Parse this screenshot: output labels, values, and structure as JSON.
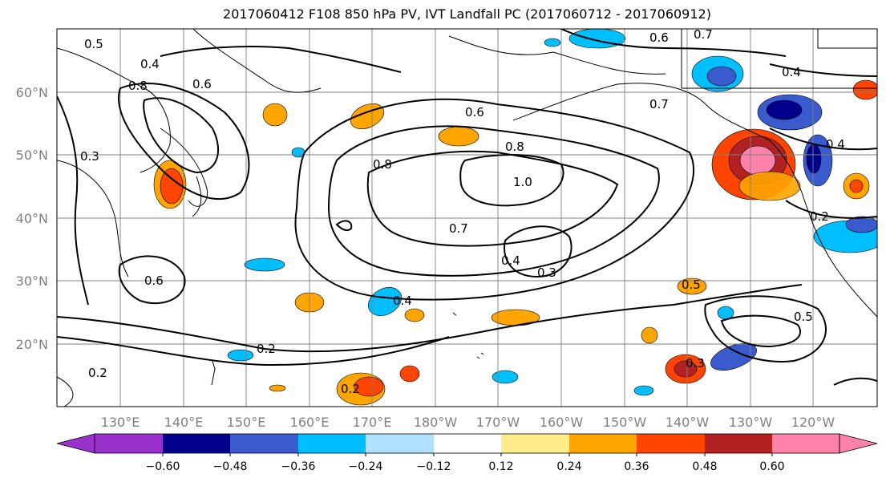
{
  "title": "2017060412 F108 850 hPa PV, IVT Landfall PC (2017060712 - 2017060912)",
  "lat_labels": [
    "60°N",
    "50°N",
    "40°N",
    "30°N",
    "20°N"
  ],
  "lon_labels": [
    "130°E",
    "140°E",
    "150°E",
    "160°E",
    "170°E",
    "180°W",
    "170°W",
    "160°W",
    "150°W",
    "140°W",
    "130°W",
    "120°W"
  ],
  "colorbar": {
    "ticks": [
      "−0.60",
      "−0.48",
      "−0.36",
      "−0.24",
      "−0.12",
      "0.12",
      "0.24",
      "0.36",
      "0.48",
      "0.60"
    ],
    "colors": [
      "#9932cc",
      "#00008b",
      "#3a5bcd",
      "#00bfff",
      "#b0e2ff",
      "#ffffff",
      "#ffec8b",
      "#ffa500",
      "#ff4500",
      "#b22222",
      "#ff82ab"
    ]
  },
  "contour_labels": [
    "0.5",
    "0.4",
    "0.6",
    "0.8",
    "0.3",
    "0.6",
    "0.8",
    "1.0",
    "0.7",
    "0.4",
    "0.3",
    "0.7",
    "0.4",
    "0.2",
    "0.2",
    "0.5",
    "0.3",
    "0.5",
    "0.4",
    "0.2",
    "0.6",
    "0.8",
    "0.6",
    "0.7",
    "0.4",
    "0.2"
  ]
}
